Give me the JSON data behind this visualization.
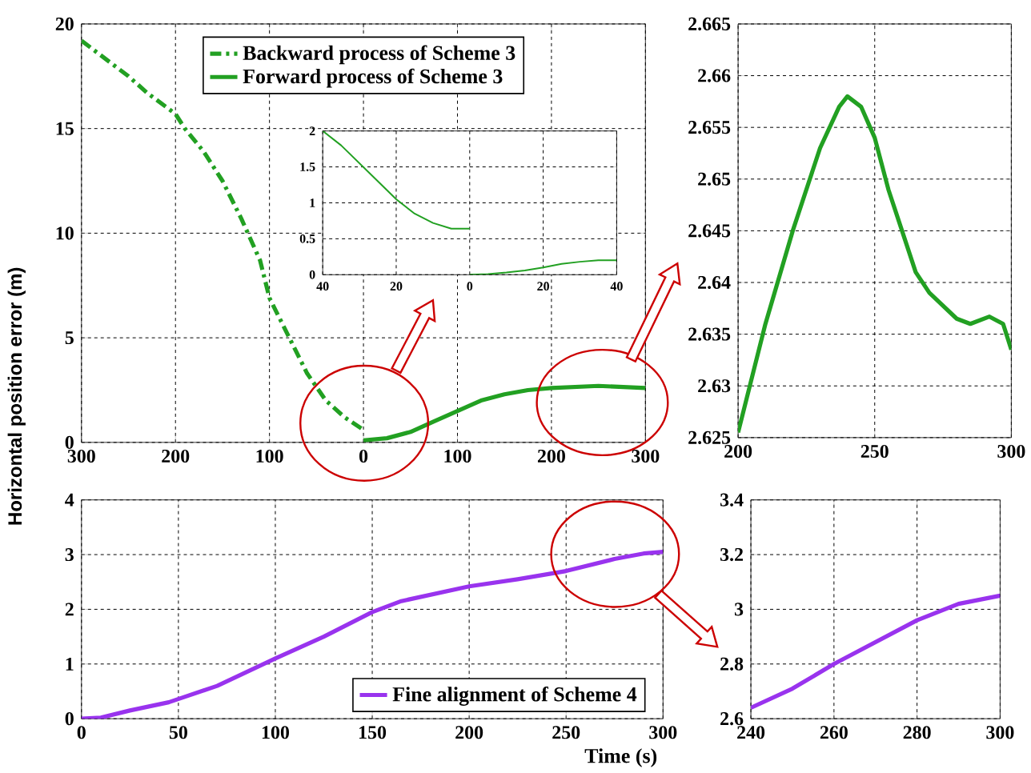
{
  "chart_data": [
    {
      "type": "line",
      "ylabel": "Horizontal position error (m)",
      "xlim": [
        -300,
        300
      ],
      "ylim": [
        0,
        20
      ],
      "xticks": [
        {
          "value": -300,
          "label": "300"
        },
        {
          "value": -200,
          "label": "200"
        },
        {
          "value": -100,
          "label": "100"
        },
        {
          "value": 0,
          "label": "0"
        },
        {
          "value": 100,
          "label": "100"
        },
        {
          "value": 200,
          "label": "200"
        },
        {
          "value": 300,
          "label": "300"
        }
      ],
      "yticks": [
        0,
        5,
        10,
        15,
        20
      ],
      "grid": true,
      "legend": "top",
      "marker": "none",
      "series": [
        {
          "name": "Backward process of Scheme 3",
          "color": "#22a022",
          "line_style": "dashdot",
          "x": [
            -300,
            -250,
            -230,
            -200,
            -190,
            -170,
            -150,
            -130,
            -110,
            -100,
            -80,
            -60,
            -40,
            -20,
            0
          ],
          "values": [
            19.2,
            17.5,
            16.7,
            15.7,
            15.0,
            13.9,
            12.5,
            10.7,
            8.7,
            6.9,
            5.1,
            3.3,
            2.0,
            1.2,
            0.6
          ]
        },
        {
          "name": "Forward process of Scheme 3",
          "color": "#22a022",
          "line_style": "solid",
          "x": [
            0,
            25,
            50,
            75,
            100,
            125,
            150,
            175,
            200,
            250,
            300
          ],
          "values": [
            0.1,
            0.2,
            0.5,
            1.0,
            1.5,
            2.0,
            2.3,
            2.5,
            2.6,
            2.7,
            2.6
          ]
        }
      ]
    },
    {
      "type": "line",
      "xlim": [
        -40,
        40
      ],
      "ylim": [
        0,
        2
      ],
      "xticks": [
        {
          "value": -40,
          "label": "40"
        },
        {
          "value": -20,
          "label": "20"
        },
        {
          "value": 0,
          "label": "0"
        },
        {
          "value": 20,
          "label": "20"
        },
        {
          "value": 40,
          "label": "40"
        }
      ],
      "yticks": [
        0,
        0.5,
        1,
        1.5,
        2
      ],
      "grid": true,
      "marker": "none",
      "series": [
        {
          "color": "#22a022",
          "x": [
            -40,
            -35,
            -30,
            -25,
            -20,
            -15,
            -10,
            -5,
            0
          ],
          "values": [
            2.0,
            1.8,
            1.55,
            1.3,
            1.05,
            0.85,
            0.72,
            0.64,
            0.64
          ]
        },
        {
          "color": "#22a022",
          "x": [
            0,
            5,
            10,
            15,
            20,
            25,
            30,
            35,
            40
          ],
          "values": [
            0.0,
            0.01,
            0.03,
            0.06,
            0.1,
            0.15,
            0.18,
            0.2,
            0.2
          ]
        }
      ]
    },
    {
      "type": "line",
      "xlim": [
        200,
        300
      ],
      "ylim": [
        2.625,
        2.665
      ],
      "xticks": [
        200,
        250,
        300
      ],
      "yticks": [
        2.625,
        2.63,
        2.635,
        2.64,
        2.645,
        2.65,
        2.655,
        2.66,
        2.665
      ],
      "grid": true,
      "marker": "none",
      "series": [
        {
          "color": "#22a022",
          "x": [
            200,
            210,
            220,
            230,
            237,
            240,
            245,
            250,
            255,
            260,
            265,
            270,
            280,
            285,
            292,
            297,
            300
          ],
          "values": [
            2.6255,
            2.636,
            2.645,
            2.653,
            2.657,
            2.658,
            2.657,
            2.654,
            2.649,
            2.645,
            2.641,
            2.639,
            2.6365,
            2.636,
            2.6367,
            2.636,
            2.6335
          ]
        }
      ]
    },
    {
      "type": "line",
      "xlabel": "Time (s)",
      "xlim": [
        0,
        300
      ],
      "ylim": [
        0,
        4
      ],
      "xticks": [
        0,
        50,
        100,
        150,
        200,
        250,
        300
      ],
      "yticks": [
        0,
        1,
        2,
        3,
        4
      ],
      "grid": true,
      "legend": "bottom right",
      "marker": "none",
      "series": [
        {
          "name": "Fine alignment of Scheme 4",
          "color": "#9933ee",
          "x": [
            0,
            10,
            25,
            45,
            70,
            100,
            125,
            150,
            165,
            200,
            225,
            250,
            275,
            290,
            300
          ],
          "values": [
            0,
            0.02,
            0.15,
            0.3,
            0.6,
            1.1,
            1.5,
            1.95,
            2.15,
            2.42,
            2.55,
            2.7,
            2.92,
            3.02,
            3.05
          ]
        }
      ]
    },
    {
      "type": "line",
      "xlim": [
        240,
        300
      ],
      "ylim": [
        2.6,
        3.4
      ],
      "xticks": [
        240,
        260,
        280,
        300
      ],
      "yticks": [
        2.6,
        2.8,
        3,
        3.2,
        3.4
      ],
      "grid": true,
      "marker": "none",
      "series": [
        {
          "color": "#9933ee",
          "x": [
            240,
            250,
            260,
            270,
            280,
            290,
            300
          ],
          "values": [
            2.64,
            2.71,
            2.8,
            2.88,
            2.96,
            3.02,
            3.05
          ]
        }
      ]
    }
  ]
}
